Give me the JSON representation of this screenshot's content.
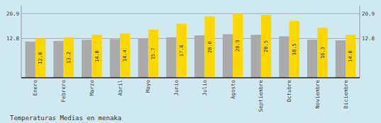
{
  "chart_data": {
    "type": "bar",
    "title": "Temperaturas Medias en menaka",
    "categories": [
      "Enero",
      "Febrero",
      "Marzo",
      "Abril",
      "Mayo",
      "Junio",
      "Julio",
      "Agosto",
      "Septiembre",
      "Octubre",
      "Noviembre",
      "Diciembre"
    ],
    "series": [
      {
        "color": "#AAAAAA",
        "values": [
          11.8,
          12.0,
          12.4,
          12.6,
          12.8,
          13.2,
          13.8,
          14.2,
          14.0,
          13.5,
          12.4,
          12.2
        ]
      },
      {
        "color": "#FFD700",
        "values": [
          12.8,
          13.2,
          14.0,
          14.4,
          15.7,
          17.6,
          20.0,
          20.9,
          20.5,
          18.5,
          16.3,
          14.0
        ],
        "value_labels": [
          "12.8",
          "13.2",
          "14.0",
          "14.4",
          "15.7",
          "17.6",
          "20.0",
          "20.9",
          "20.5",
          "18.5",
          "16.3",
          "14.0"
        ],
        "data_labels": true
      }
    ],
    "ylim": [
      0,
      23.5
    ],
    "yticks": [
      12.8,
      20.9
    ],
    "y2lim": [
      0,
      23.5
    ],
    "y2ticks": [
      12.8,
      20.9
    ],
    "grid": true
  }
}
